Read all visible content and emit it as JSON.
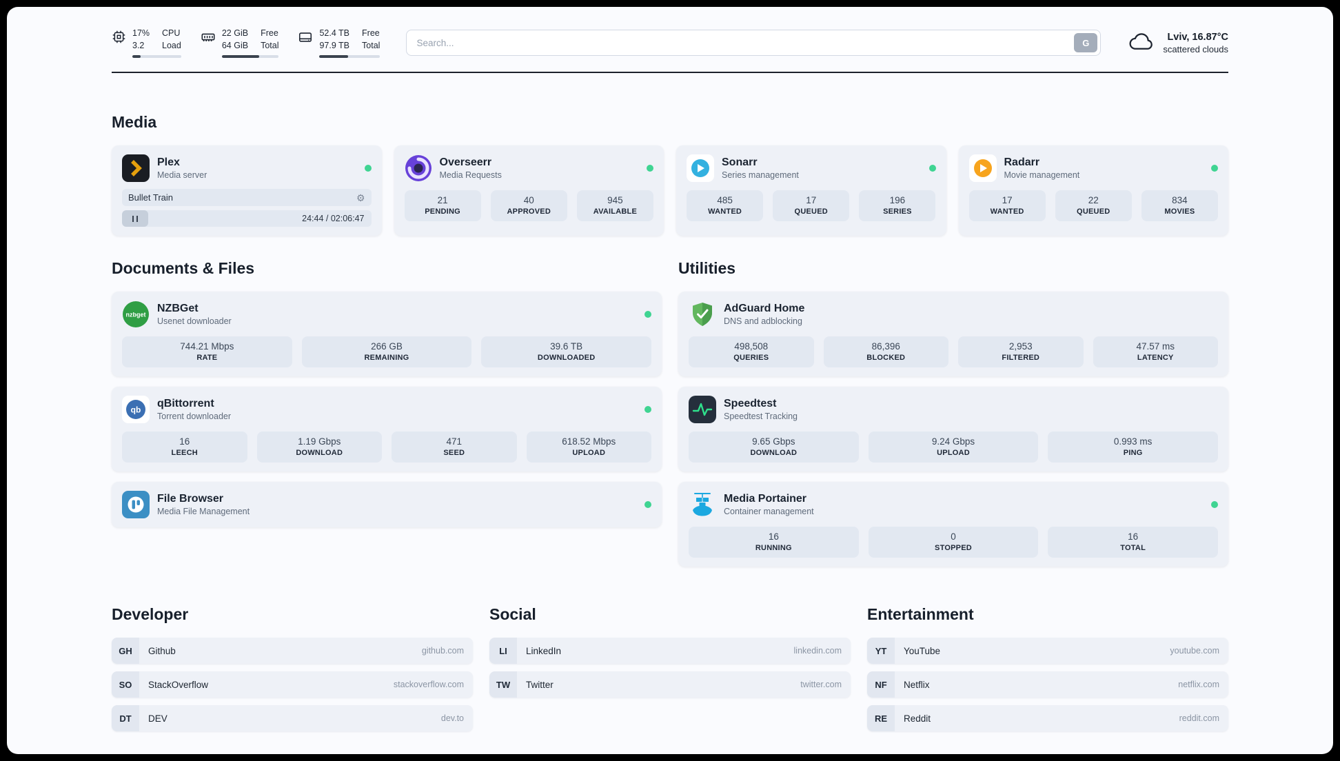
{
  "colors": {
    "status_online": "#3fd492",
    "accent_dark": "#1c212b"
  },
  "header": {
    "cpu": {
      "line1": "17%",
      "line2": "3.2",
      "label1": "CPU",
      "label2": "Load",
      "progress": 17
    },
    "ram": {
      "line1": "22 GiB",
      "line2": "64 GiB",
      "label1": "Free",
      "label2": "Total",
      "progress": 66
    },
    "disk": {
      "line1": "52.4 TB",
      "line2": "97.9 TB",
      "label1": "Free",
      "label2": "Total",
      "progress": 47
    },
    "search": {
      "placeholder": "Search...",
      "button_label": "G"
    },
    "weather": {
      "location": "Lviv, 16.87°C",
      "condition": "scattered clouds"
    }
  },
  "media": {
    "title": "Media",
    "plex": {
      "title": "Plex",
      "subtitle": "Media server",
      "now_playing": "Bullet Train",
      "time": "24:44 / 02:06:47"
    },
    "overseerr": {
      "title": "Overseerr",
      "subtitle": "Media Requests",
      "stats": [
        {
          "value": "21",
          "label": "PENDING"
        },
        {
          "value": "40",
          "label": "APPROVED"
        },
        {
          "value": "945",
          "label": "AVAILABLE"
        }
      ]
    },
    "sonarr": {
      "title": "Sonarr",
      "subtitle": "Series management",
      "stats": [
        {
          "value": "485",
          "label": "WANTED"
        },
        {
          "value": "17",
          "label": "QUEUED"
        },
        {
          "value": "196",
          "label": "SERIES"
        }
      ]
    },
    "radarr": {
      "title": "Radarr",
      "subtitle": "Movie management",
      "stats": [
        {
          "value": "17",
          "label": "WANTED"
        },
        {
          "value": "22",
          "label": "QUEUED"
        },
        {
          "value": "834",
          "label": "MOVIES"
        }
      ]
    }
  },
  "documents": {
    "title": "Documents & Files",
    "nzbget": {
      "title": "NZBGet",
      "subtitle": "Usenet downloader",
      "stats": [
        {
          "value": "744.21 Mbps",
          "label": "RATE"
        },
        {
          "value": "266 GB",
          "label": "REMAINING"
        },
        {
          "value": "39.6 TB",
          "label": "DOWNLOADED"
        }
      ]
    },
    "qbittorrent": {
      "title": "qBittorrent",
      "subtitle": "Torrent downloader",
      "stats": [
        {
          "value": "16",
          "label": "LEECH"
        },
        {
          "value": "1.19 Gbps",
          "label": "DOWNLOAD"
        },
        {
          "value": "471",
          "label": "SEED"
        },
        {
          "value": "618.52 Mbps",
          "label": "UPLOAD"
        }
      ]
    },
    "filebrowser": {
      "title": "File Browser",
      "subtitle": "Media File Management"
    }
  },
  "utilities": {
    "title": "Utilities",
    "adguard": {
      "title": "AdGuard Home",
      "subtitle": "DNS and adblocking",
      "stats": [
        {
          "value": "498,508",
          "label": "QUERIES"
        },
        {
          "value": "86,396",
          "label": "BLOCKED"
        },
        {
          "value": "2,953",
          "label": "FILTERED"
        },
        {
          "value": "47.57 ms",
          "label": "LATENCY"
        }
      ]
    },
    "speedtest": {
      "title": "Speedtest",
      "subtitle": "Speedtest Tracking",
      "stats": [
        {
          "value": "9.65 Gbps",
          "label": "DOWNLOAD"
        },
        {
          "value": "9.24 Gbps",
          "label": "UPLOAD"
        },
        {
          "value": "0.993 ms",
          "label": "PING"
        }
      ]
    },
    "portainer": {
      "title": "Media Portainer",
      "subtitle": "Container management",
      "stats": [
        {
          "value": "16",
          "label": "RUNNING"
        },
        {
          "value": "0",
          "label": "STOPPED"
        },
        {
          "value": "16",
          "label": "TOTAL"
        }
      ]
    }
  },
  "bookmarks": {
    "developer": {
      "title": "Developer",
      "items": [
        {
          "abbr": "GH",
          "name": "Github",
          "url": "github.com"
        },
        {
          "abbr": "SO",
          "name": "StackOverflow",
          "url": "stackoverflow.com"
        },
        {
          "abbr": "DT",
          "name": "DEV",
          "url": "dev.to"
        }
      ]
    },
    "social": {
      "title": "Social",
      "items": [
        {
          "abbr": "LI",
          "name": "LinkedIn",
          "url": "linkedin.com"
        },
        {
          "abbr": "TW",
          "name": "Twitter",
          "url": "twitter.com"
        }
      ]
    },
    "entertainment": {
      "title": "Entertainment",
      "items": [
        {
          "abbr": "YT",
          "name": "YouTube",
          "url": "youtube.com"
        },
        {
          "abbr": "NF",
          "name": "Netflix",
          "url": "netflix.com"
        },
        {
          "abbr": "RE",
          "name": "Reddit",
          "url": "reddit.com"
        }
      ]
    }
  }
}
